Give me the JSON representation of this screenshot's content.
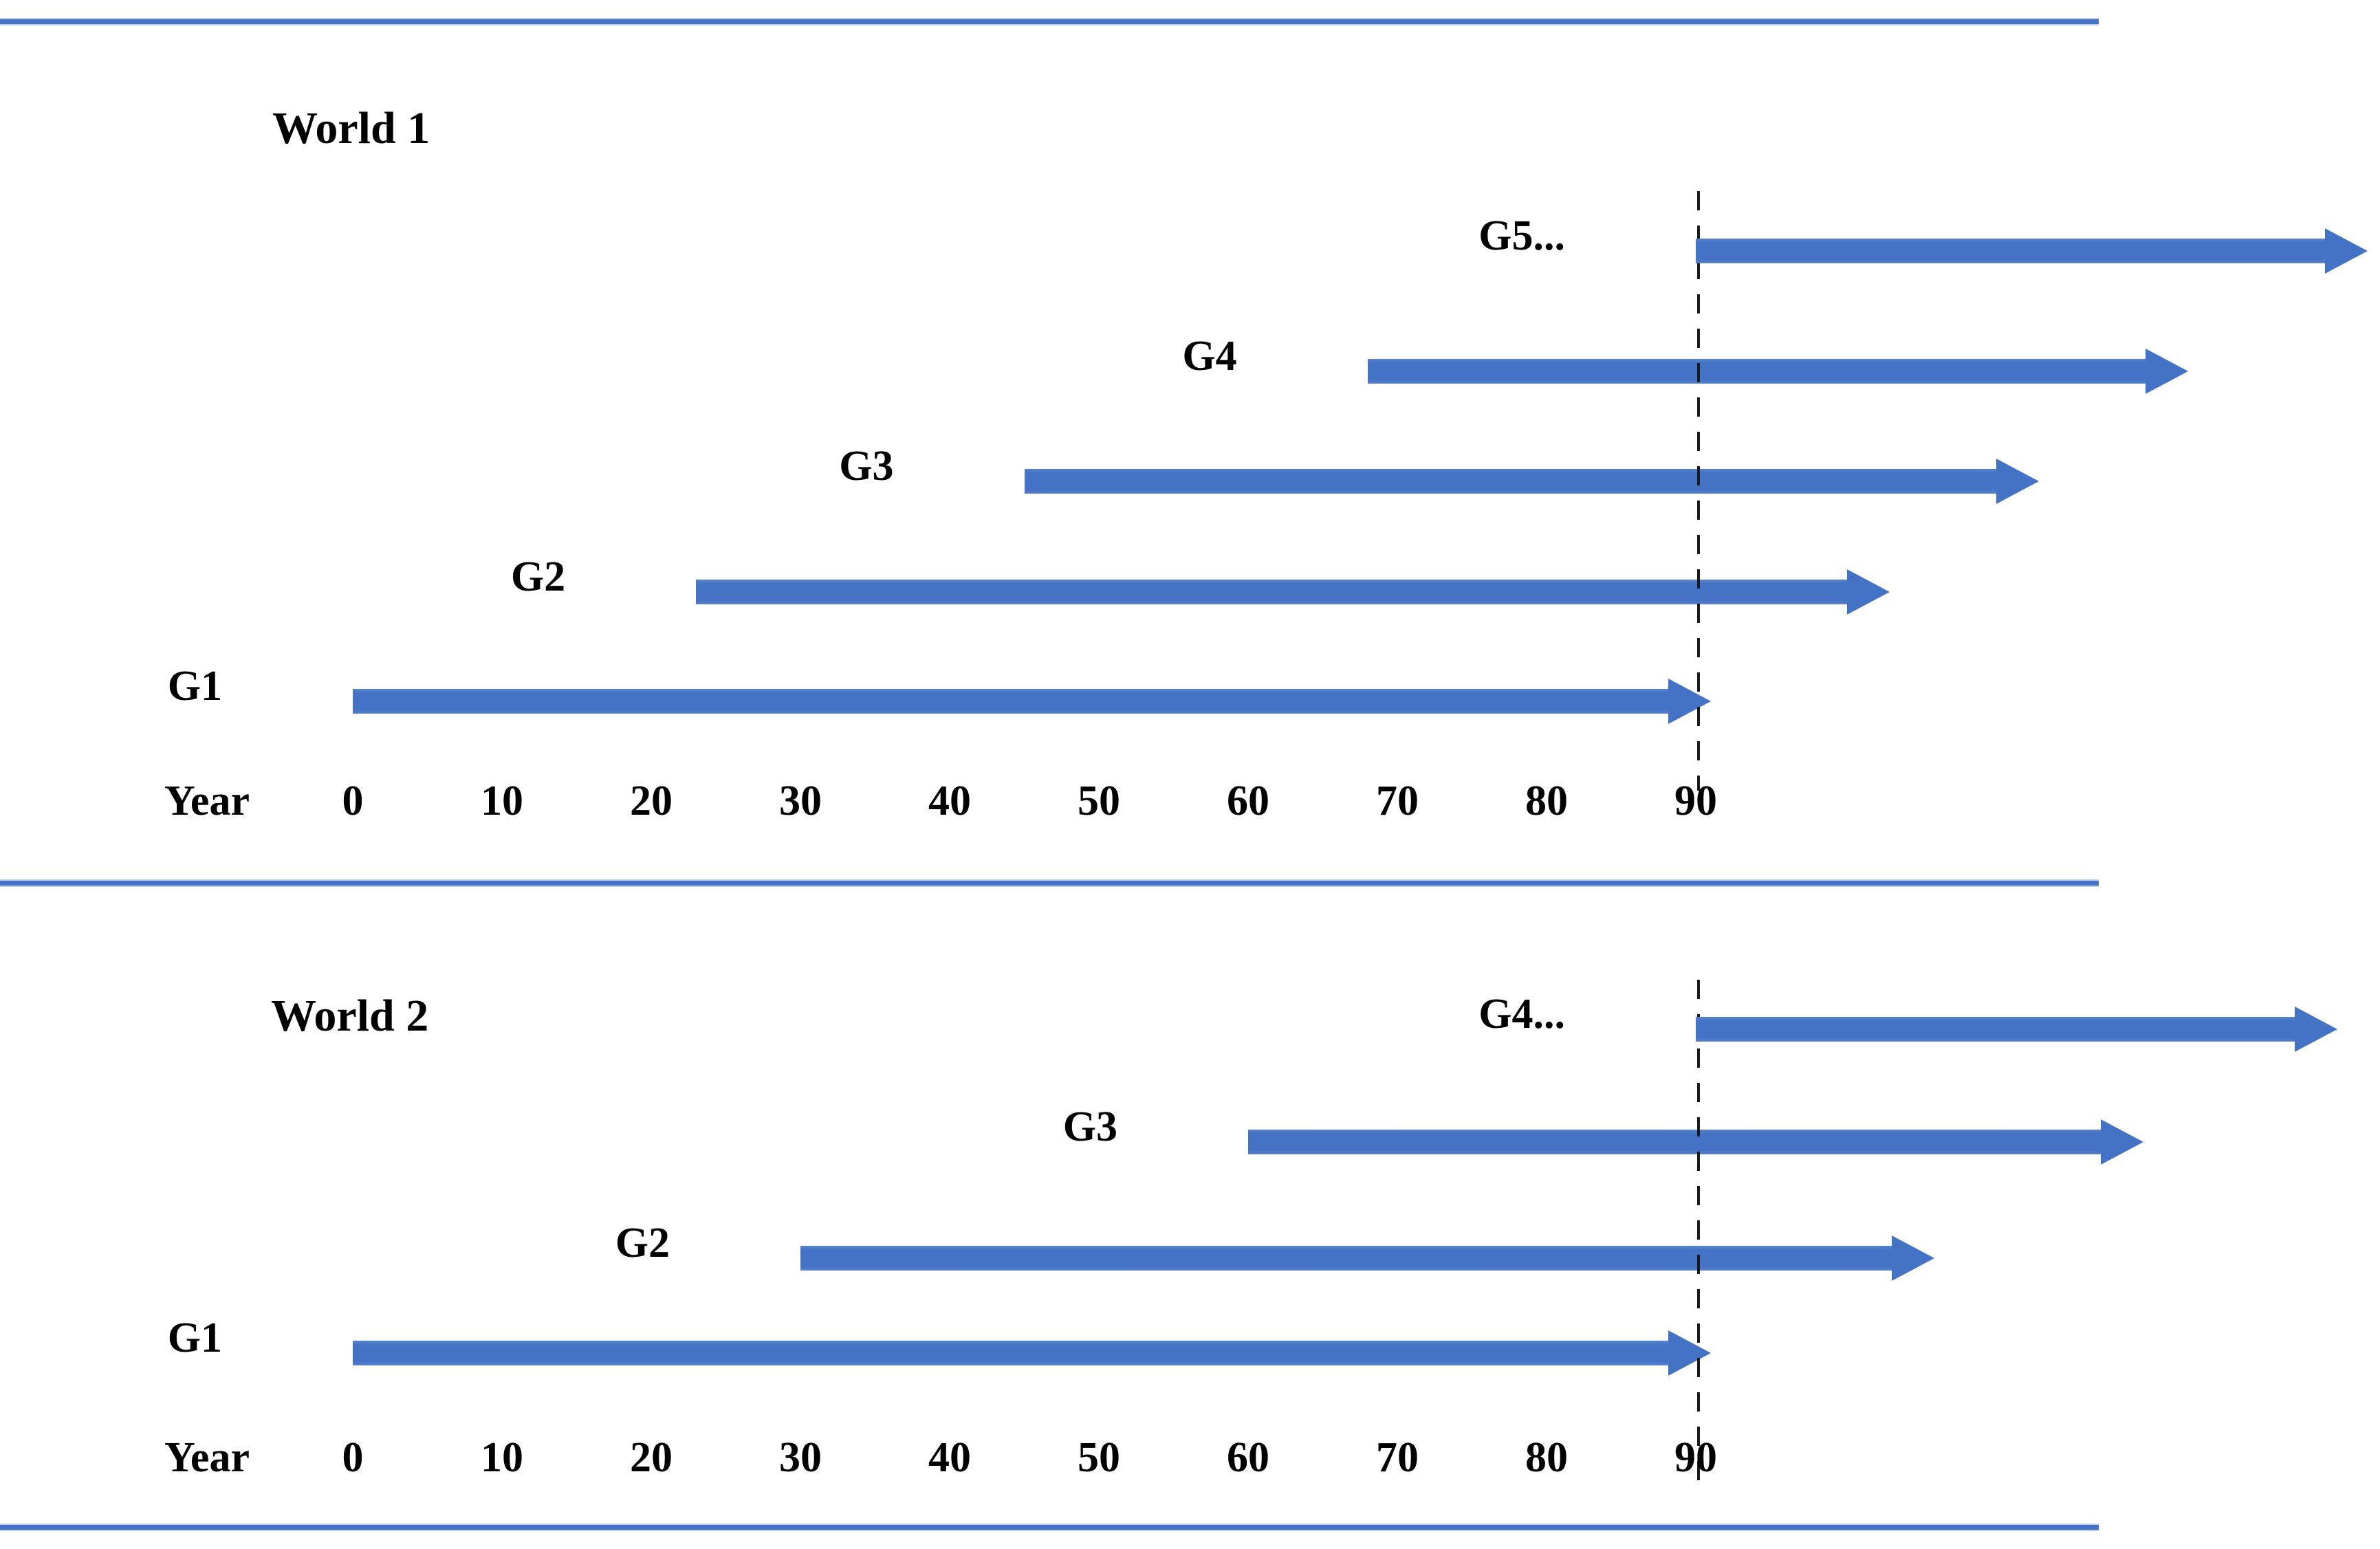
{
  "chart_data": {
    "type": "bar",
    "subtype": "generation-timeline-gantt",
    "title": "",
    "axis": {
      "label": "Year",
      "ticks": [
        0,
        10,
        20,
        30,
        40,
        50,
        60,
        70,
        80,
        90
      ],
      "range_drawn": [
        0,
        136
      ]
    },
    "dashed_line_year": 90,
    "grid": false,
    "legend": false,
    "colors": {
      "arrow_blue": "#4472C4",
      "rule_blue": "#4472C4",
      "dashed_line": "#1a1a1a",
      "text": "#000000",
      "background": "#ffffff"
    },
    "worlds": [
      {
        "name": "World 1",
        "generations": [
          {
            "label": "G1",
            "start_year": 0,
            "end_year": 90,
            "drawn_end_year": 91,
            "continues": false
          },
          {
            "label": "G2",
            "start_year": 23,
            "drawn_end_year": 103,
            "continues": true
          },
          {
            "label": "G3",
            "start_year": 45,
            "drawn_end_year": 113,
            "continues": true
          },
          {
            "label": "G4",
            "start_year": 68,
            "drawn_end_year": 123,
            "continues": true
          },
          {
            "label": "G5...",
            "start_year": 90,
            "drawn_end_year": 135,
            "continues": true
          }
        ]
      },
      {
        "name": "World 2",
        "generations": [
          {
            "label": "G1",
            "start_year": 0,
            "end_year": 90,
            "drawn_end_year": 91,
            "continues": false
          },
          {
            "label": "G2",
            "start_year": 30,
            "drawn_end_year": 106,
            "continues": true
          },
          {
            "label": "G3",
            "start_year": 60,
            "drawn_end_year": 120,
            "continues": true
          },
          {
            "label": "G4...",
            "start_year": 90,
            "drawn_end_year": 133,
            "continues": true
          }
        ]
      }
    ]
  }
}
